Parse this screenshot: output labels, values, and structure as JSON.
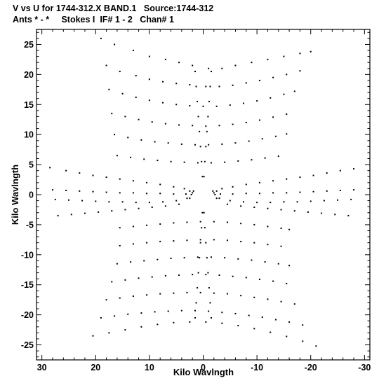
{
  "header": {
    "line1": "V vs U for 1744-312.X BAND.1   Source:1744-312",
    "line2": "Ants * - *     Stokes I  IF# 1 - 2   Chan# 1"
  },
  "chart_data": {
    "type": "scatter",
    "title": "V vs U for 1744-312.X BAND.1   Source:1744-312",
    "subtitle": "Ants * - *     Stokes I  IF# 1 - 2   Chan# 1",
    "xlabel": "Kilo Wavlngth",
    "ylabel": "Kilo Wavlngth",
    "xlim": [
      31,
      -31
    ],
    "ylim": [
      -27.5,
      27.5
    ],
    "xticks": [
      30,
      20,
      10,
      0,
      -10,
      -20,
      -30
    ],
    "yticks": [
      25,
      20,
      15,
      10,
      5,
      0,
      -5,
      -10,
      -15,
      -20,
      -25
    ],
    "x_axis_reversed": true,
    "grid": false,
    "legend": "none",
    "marker_color": "#000000",
    "series": [
      {
        "points": [
          [
            19.0,
            26.0
          ],
          [
            16.5,
            25.0
          ],
          [
            13.0,
            24.0
          ],
          [
            10.0,
            23.0
          ],
          [
            7.0,
            22.5
          ],
          [
            4.5,
            22.0
          ],
          [
            2.0,
            21.5
          ],
          [
            -1.0,
            21.0
          ],
          [
            -3.5,
            21.0
          ],
          [
            -6.0,
            21.5
          ],
          [
            -9.0,
            22.0
          ],
          [
            -12.0,
            22.5
          ],
          [
            -15.0,
            23.0
          ],
          [
            -18.0,
            23.5
          ],
          [
            -20.0,
            23.8
          ],
          [
            18.0,
            21.5
          ],
          [
            15.5,
            20.5
          ],
          [
            12.5,
            19.8
          ],
          [
            10.0,
            19.2
          ],
          [
            7.5,
            18.8
          ],
          [
            5.0,
            18.5
          ],
          [
            2.5,
            18.3
          ],
          [
            -0.5,
            18.0
          ],
          [
            -3.0,
            18.0
          ],
          [
            -5.5,
            18.2
          ],
          [
            -8.0,
            18.6
          ],
          [
            -10.5,
            19.0
          ],
          [
            -13.0,
            19.5
          ],
          [
            -15.5,
            20.0
          ],
          [
            -18.0,
            20.6
          ],
          [
            17.5,
            17.5
          ],
          [
            15.0,
            16.8
          ],
          [
            12.5,
            16.2
          ],
          [
            10.0,
            15.7
          ],
          [
            7.5,
            15.3
          ],
          [
            5.0,
            15.0
          ],
          [
            2.5,
            14.8
          ],
          [
            0.0,
            14.7
          ],
          [
            -2.5,
            14.7
          ],
          [
            -5.0,
            14.9
          ],
          [
            -7.5,
            15.2
          ],
          [
            -10.0,
            15.6
          ],
          [
            -12.5,
            16.1
          ],
          [
            -15.0,
            16.7
          ],
          [
            -17.0,
            17.2
          ],
          [
            17.0,
            13.5
          ],
          [
            14.5,
            13.0
          ],
          [
            12.0,
            12.5
          ],
          [
            9.5,
            12.1
          ],
          [
            7.0,
            11.8
          ],
          [
            4.5,
            11.6
          ],
          [
            2.0,
            11.5
          ],
          [
            -0.5,
            11.4
          ],
          [
            -3.0,
            11.5
          ],
          [
            -5.5,
            11.7
          ],
          [
            -8.0,
            12.0
          ],
          [
            -10.5,
            12.4
          ],
          [
            -13.0,
            12.9
          ],
          [
            -15.5,
            13.4
          ],
          [
            16.5,
            10.0
          ],
          [
            14.0,
            9.5
          ],
          [
            11.5,
            9.1
          ],
          [
            9.0,
            8.8
          ],
          [
            6.5,
            8.6
          ],
          [
            4.0,
            8.4
          ],
          [
            1.5,
            8.3
          ],
          [
            -1.0,
            8.3
          ],
          [
            -3.5,
            8.4
          ],
          [
            -6.0,
            8.6
          ],
          [
            -8.5,
            8.9
          ],
          [
            -11.0,
            9.3
          ],
          [
            -13.5,
            9.7
          ],
          [
            -15.5,
            10.1
          ],
          [
            16.0,
            6.5
          ],
          [
            13.5,
            6.2
          ],
          [
            11.0,
            5.9
          ],
          [
            8.5,
            5.7
          ],
          [
            6.0,
            5.5
          ],
          [
            3.5,
            5.4
          ],
          [
            1.0,
            5.3
          ],
          [
            -1.5,
            5.3
          ],
          [
            -4.0,
            5.4
          ],
          [
            -6.5,
            5.6
          ],
          [
            -9.0,
            5.8
          ],
          [
            -11.5,
            6.1
          ],
          [
            -14.0,
            6.4
          ],
          [
            28.5,
            4.5
          ],
          [
            25.5,
            4.0
          ],
          [
            23.0,
            3.6
          ],
          [
            20.5,
            3.2
          ],
          [
            18.0,
            2.9
          ],
          [
            15.5,
            2.6
          ],
          [
            13.0,
            2.3
          ],
          [
            10.5,
            2.0
          ],
          [
            8.0,
            1.7
          ],
          [
            5.5,
            1.3
          ],
          [
            3.5,
            1.0
          ],
          [
            1.8,
            0.6
          ],
          [
            -1.8,
            0.6
          ],
          [
            -3.5,
            1.0
          ],
          [
            -5.5,
            1.3
          ],
          [
            -8.0,
            1.7
          ],
          [
            -10.5,
            2.0
          ],
          [
            -13.0,
            2.3
          ],
          [
            -15.5,
            2.6
          ],
          [
            -18.0,
            2.9
          ],
          [
            -20.5,
            3.2
          ],
          [
            -23.0,
            3.6
          ],
          [
            -25.5,
            4.0
          ],
          [
            -28.0,
            4.3
          ],
          [
            28.0,
            0.8
          ],
          [
            25.5,
            0.7
          ],
          [
            23.0,
            0.6
          ],
          [
            20.5,
            0.5
          ],
          [
            18.0,
            0.4
          ],
          [
            15.5,
            0.3
          ],
          [
            13.0,
            0.3
          ],
          [
            10.5,
            0.2
          ],
          [
            8.0,
            0.2
          ],
          [
            5.5,
            0.1
          ],
          [
            3.2,
            0.1
          ],
          [
            2.0,
            0.3
          ],
          [
            -2.0,
            0.3
          ],
          [
            -3.2,
            0.1
          ],
          [
            -5.5,
            0.1
          ],
          [
            -8.0,
            0.2
          ],
          [
            -10.5,
            0.2
          ],
          [
            -13.0,
            0.3
          ],
          [
            -15.5,
            0.3
          ],
          [
            -18.0,
            0.4
          ],
          [
            -20.5,
            0.5
          ],
          [
            -23.0,
            0.6
          ],
          [
            -25.5,
            0.7
          ],
          [
            -28.0,
            0.8
          ],
          [
            27.5,
            -0.8
          ],
          [
            25.0,
            -0.9
          ],
          [
            22.5,
            -1.0
          ],
          [
            20.0,
            -1.1
          ],
          [
            17.5,
            -1.2
          ],
          [
            15.0,
            -1.2
          ],
          [
            12.5,
            -1.3
          ],
          [
            10.0,
            -1.3
          ],
          [
            7.5,
            -1.2
          ],
          [
            5.0,
            -1.0
          ],
          [
            3.0,
            -0.6
          ],
          [
            -3.0,
            -0.6
          ],
          [
            -5.0,
            -1.0
          ],
          [
            -7.5,
            -1.2
          ],
          [
            -10.0,
            -1.3
          ],
          [
            -12.5,
            -1.3
          ],
          [
            -15.0,
            -1.2
          ],
          [
            -17.5,
            -1.2
          ],
          [
            -20.0,
            -1.1
          ],
          [
            -22.5,
            -1.0
          ],
          [
            -25.0,
            -0.9
          ],
          [
            -27.5,
            -0.8
          ],
          [
            27.0,
            -3.5
          ],
          [
            24.5,
            -3.3
          ],
          [
            22.0,
            -3.1
          ],
          [
            19.5,
            -2.9
          ],
          [
            17.0,
            -2.7
          ],
          [
            14.5,
            -2.5
          ],
          [
            12.0,
            -2.3
          ],
          [
            9.5,
            -2.1
          ],
          [
            7.0,
            -1.9
          ],
          [
            4.5,
            -1.6
          ],
          [
            -4.5,
            -1.6
          ],
          [
            -7.0,
            -1.9
          ],
          [
            -9.5,
            -2.1
          ],
          [
            -12.0,
            -2.3
          ],
          [
            -14.5,
            -2.5
          ],
          [
            -17.0,
            -2.7
          ],
          [
            -19.5,
            -2.9
          ],
          [
            -22.0,
            -3.1
          ],
          [
            -24.5,
            -3.3
          ],
          [
            -27.0,
            -3.5
          ],
          [
            15.5,
            -5.5
          ],
          [
            13.0,
            -5.3
          ],
          [
            10.5,
            -5.1
          ],
          [
            8.0,
            -4.9
          ],
          [
            5.5,
            -4.7
          ],
          [
            3.0,
            -4.6
          ],
          [
            0.5,
            -4.5
          ],
          [
            -2.0,
            -4.5
          ],
          [
            -4.5,
            -4.6
          ],
          [
            -7.0,
            -4.8
          ],
          [
            -9.5,
            -5.0
          ],
          [
            -12.0,
            -5.3
          ],
          [
            -14.5,
            -5.6
          ],
          [
            -16.0,
            -5.8
          ],
          [
            15.5,
            -8.5
          ],
          [
            13.0,
            -8.2
          ],
          [
            10.5,
            -8.0
          ],
          [
            8.0,
            -7.8
          ],
          [
            5.5,
            -7.7
          ],
          [
            3.0,
            -7.6
          ],
          [
            0.5,
            -7.5
          ],
          [
            -2.0,
            -7.5
          ],
          [
            -4.5,
            -7.6
          ],
          [
            -7.0,
            -7.8
          ],
          [
            -9.5,
            -8.0
          ],
          [
            -12.0,
            -8.3
          ],
          [
            -14.5,
            -8.6
          ],
          [
            16.0,
            -11.5
          ],
          [
            13.5,
            -11.2
          ],
          [
            11.0,
            -11.0
          ],
          [
            8.5,
            -10.8
          ],
          [
            6.0,
            -10.6
          ],
          [
            3.5,
            -10.5
          ],
          [
            1.0,
            -10.4
          ],
          [
            -1.5,
            -10.4
          ],
          [
            -4.0,
            -10.5
          ],
          [
            -6.5,
            -10.7
          ],
          [
            -9.0,
            -10.9
          ],
          [
            -11.5,
            -11.2
          ],
          [
            -14.0,
            -11.5
          ],
          [
            -16.0,
            -11.8
          ],
          [
            17.0,
            -14.5
          ],
          [
            14.5,
            -14.2
          ],
          [
            12.0,
            -13.9
          ],
          [
            9.5,
            -13.7
          ],
          [
            7.0,
            -13.5
          ],
          [
            4.5,
            -13.4
          ],
          [
            2.0,
            -13.3
          ],
          [
            -0.5,
            -13.3
          ],
          [
            -3.0,
            -13.4
          ],
          [
            -5.5,
            -13.6
          ],
          [
            -8.0,
            -13.8
          ],
          [
            -10.5,
            -14.1
          ],
          [
            -13.0,
            -14.4
          ],
          [
            -15.5,
            -14.8
          ],
          [
            18.0,
            -17.5
          ],
          [
            15.5,
            -17.2
          ],
          [
            13.0,
            -16.9
          ],
          [
            10.5,
            -16.7
          ],
          [
            8.0,
            -16.5
          ],
          [
            5.5,
            -16.4
          ],
          [
            3.0,
            -16.3
          ],
          [
            0.5,
            -16.3
          ],
          [
            -2.0,
            -16.4
          ],
          [
            -4.5,
            -16.5
          ],
          [
            -7.0,
            -16.8
          ],
          [
            -9.5,
            -17.1
          ],
          [
            -12.0,
            -17.4
          ],
          [
            -14.5,
            -17.8
          ],
          [
            -17.0,
            -18.2
          ],
          [
            19.0,
            -20.5
          ],
          [
            16.5,
            -20.2
          ],
          [
            14.0,
            -19.9
          ],
          [
            11.5,
            -19.7
          ],
          [
            9.0,
            -19.5
          ],
          [
            6.5,
            -19.4
          ],
          [
            4.0,
            -19.3
          ],
          [
            1.5,
            -19.3
          ],
          [
            -1.0,
            -19.4
          ],
          [
            -3.5,
            -19.6
          ],
          [
            -6.0,
            -19.8
          ],
          [
            -8.5,
            -20.1
          ],
          [
            -11.0,
            -20.4
          ],
          [
            -13.5,
            -20.8
          ],
          [
            -16.0,
            -21.2
          ],
          [
            -18.5,
            -21.7
          ],
          [
            20.5,
            -23.5
          ],
          [
            17.5,
            -23.0
          ],
          [
            14.5,
            -22.5
          ],
          [
            11.5,
            -22.0
          ],
          [
            8.5,
            -21.6
          ],
          [
            5.5,
            -21.3
          ],
          [
            2.5,
            -21.2
          ],
          [
            -0.5,
            -21.2
          ],
          [
            -3.5,
            -21.4
          ],
          [
            -6.5,
            -21.8
          ],
          [
            -9.5,
            -22.3
          ],
          [
            -12.5,
            -22.9
          ],
          [
            -15.5,
            -23.6
          ],
          [
            -18.5,
            -24.4
          ],
          [
            -21.0,
            -25.2
          ],
          [
            1.5,
            20.5
          ],
          [
            1.3,
            18.0
          ],
          [
            1.1,
            15.5
          ],
          [
            0.9,
            13.0
          ],
          [
            0.7,
            10.5
          ],
          [
            0.5,
            8.0
          ],
          [
            0.3,
            5.5
          ],
          [
            0.15,
            3.0
          ],
          [
            -1.5,
            20.5
          ],
          [
            -1.3,
            18.0
          ],
          [
            -1.1,
            15.5
          ],
          [
            -0.9,
            13.0
          ],
          [
            -0.7,
            10.5
          ],
          [
            -0.5,
            8.0
          ],
          [
            -0.3,
            5.5
          ],
          [
            -0.15,
            3.0
          ],
          [
            1.5,
            -20.5
          ],
          [
            1.3,
            -18.0
          ],
          [
            1.1,
            -15.5
          ],
          [
            0.9,
            -13.0
          ],
          [
            0.7,
            -10.5
          ],
          [
            0.5,
            -8.0
          ],
          [
            0.3,
            -5.5
          ],
          [
            0.15,
            -3.0
          ],
          [
            -1.5,
            -20.5
          ],
          [
            -1.3,
            -18.0
          ],
          [
            -1.1,
            -15.5
          ],
          [
            -0.9,
            -13.0
          ],
          [
            -0.7,
            -10.5
          ],
          [
            -0.5,
            -8.0
          ],
          [
            -0.3,
            -5.5
          ],
          [
            -0.15,
            -3.0
          ],
          [
            2.2,
            0.0
          ],
          [
            2.5,
            0.6
          ],
          [
            2.5,
            -0.6
          ],
          [
            -2.2,
            0.0
          ],
          [
            -2.5,
            0.6
          ],
          [
            -2.5,
            -0.6
          ]
        ]
      }
    ]
  }
}
